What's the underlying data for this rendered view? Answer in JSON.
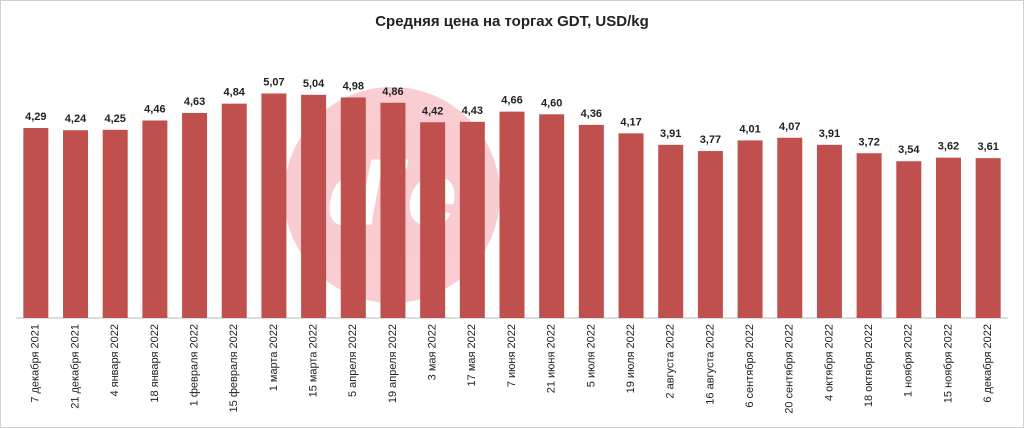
{
  "chart_data": {
    "type": "bar",
    "title": "Средняя цена на торгах GDT, USD/kg",
    "categories": [
      "7 декабря 2021",
      "21 декабря 2021",
      "4 января 2022",
      "18 января 2022",
      "1 февраля 2022",
      "15 февраля 2022",
      "1 марта 2022",
      "15 марта 2022",
      "5 апреля 2022",
      "19 апреля 2022",
      "3 мая 2022",
      "17 мая 2022",
      "7 июня 2022",
      "21 июня 2022",
      "5 июля 2022",
      "19 июля 2022",
      "2 августа 2022",
      "16 августа 2022",
      "6 сентября 2022",
      "20 сентября 2022",
      "4 октября 2022",
      "18 октября 2022",
      "1 ноября 2022",
      "15 ноября 2022",
      "6 декабря 2022"
    ],
    "values": [
      4.29,
      4.24,
      4.25,
      4.46,
      4.63,
      4.84,
      5.07,
      5.04,
      4.98,
      4.86,
      4.42,
      4.43,
      4.66,
      4.6,
      4.36,
      4.17,
      3.91,
      3.77,
      4.01,
      4.07,
      3.91,
      3.72,
      3.54,
      3.62,
      3.61
    ],
    "value_labels": [
      "4,29",
      "4,24",
      "4,25",
      "4,46",
      "4,63",
      "4,84",
      "5,07",
      "5,04",
      "4,98",
      "4,86",
      "4,42",
      "4,43",
      "4,66",
      "4,60",
      "4,36",
      "4,17",
      "3,91",
      "3,77",
      "4,01",
      "4,07",
      "3,91",
      "3,72",
      "3,54",
      "3,62",
      "3,61"
    ],
    "color": "#c0504d",
    "ylim": [
      0,
      5.6
    ]
  }
}
